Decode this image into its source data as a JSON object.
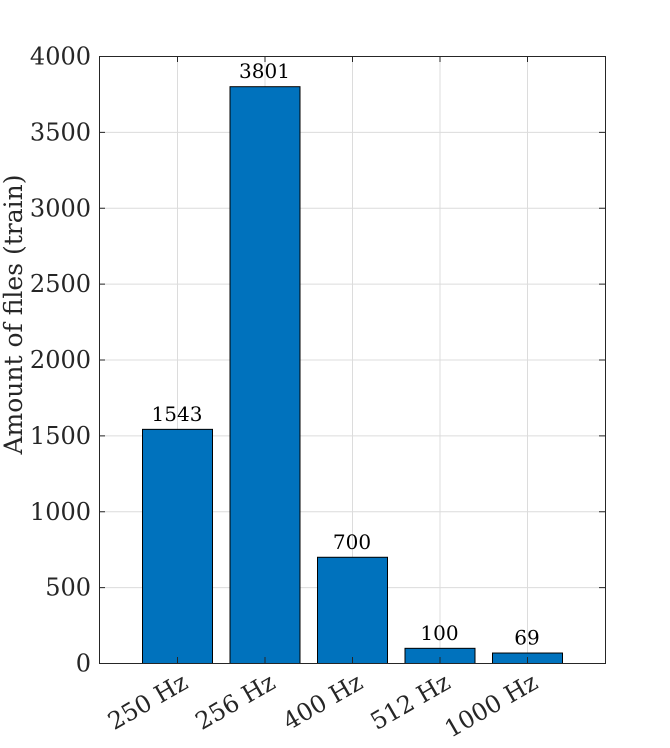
{
  "chart_data": {
    "type": "bar",
    "categories": [
      "250 Hz",
      "256 Hz",
      "400 Hz",
      "512 Hz",
      "1000 Hz"
    ],
    "values": [
      1543,
      3801,
      700,
      100,
      69
    ],
    "data_labels": [
      "1543",
      "3801",
      "700",
      "100",
      "69"
    ],
    "xlabel": "",
    "ylabel": "Amount of files (train)",
    "ylim": [
      0,
      4000
    ],
    "yticks": [
      0,
      500,
      1000,
      1500,
      2000,
      2500,
      3000,
      3500,
      4000
    ],
    "ytick_labels": [
      "0",
      "500",
      "1000",
      "1500",
      "2000",
      "2500",
      "3000",
      "3500",
      "4000"
    ],
    "grid": true,
    "bar_color": "#0072bd"
  }
}
